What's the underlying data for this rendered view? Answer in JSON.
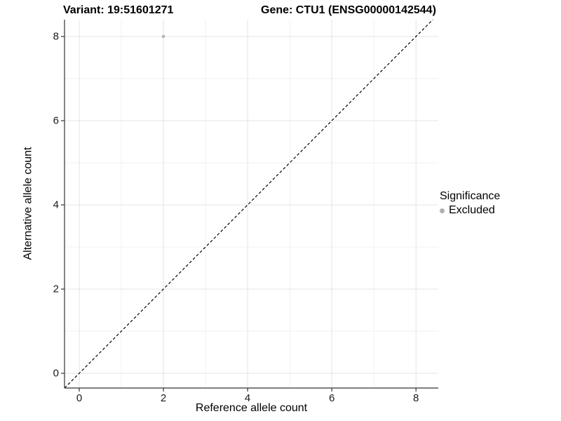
{
  "titles": {
    "variant": "Variant: 19:51601271",
    "gene": "Gene: CTU1 (ENSG00000142544)"
  },
  "chart_data": {
    "type": "scatter",
    "title": "Variant: 19:51601271   Gene: CTU1 (ENSG00000142544)",
    "xlabel": "Reference allele count",
    "ylabel": "Alternative allele count",
    "points": [
      {
        "x": 2,
        "y": 8,
        "series": "Excluded"
      }
    ],
    "x_ticks": [
      0,
      2,
      4,
      6,
      8
    ],
    "y_ticks": [
      0,
      2,
      4,
      6,
      8
    ],
    "x_minor_ticks": [
      1,
      3,
      5,
      7
    ],
    "y_minor_ticks": [
      1,
      3,
      5,
      7
    ],
    "xlim": [
      -0.35,
      8.53
    ],
    "ylim": [
      -0.35,
      8.4
    ],
    "grid": true,
    "reference_line": {
      "equation": "y = x",
      "style": "dashed",
      "color": "#000000"
    },
    "legend": {
      "title": "Significance",
      "position": "right",
      "items": [
        {
          "label": "Excluded",
          "color": "#b0b0b0"
        }
      ]
    }
  },
  "colors": {
    "background": "#ffffff",
    "point": "#b5b5b5",
    "grid_major": "#e4e4e4",
    "grid_minor": "#f1f1f1",
    "axis_line": "#333333",
    "tick_mark": "#333333",
    "tick_label": "#1a1a1a"
  }
}
